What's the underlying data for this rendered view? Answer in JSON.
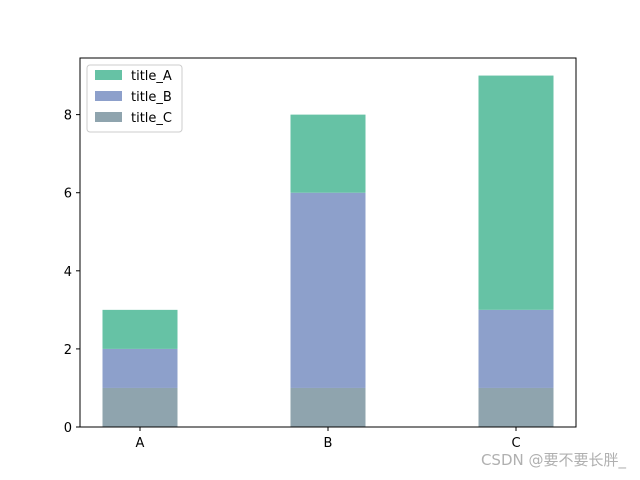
{
  "chart_data": {
    "type": "bar",
    "stacked": true,
    "categories": [
      "A",
      "B",
      "C"
    ],
    "series": [
      {
        "name": "title_C",
        "values": [
          1,
          1,
          1
        ],
        "color": "#8fa4ae"
      },
      {
        "name": "title_B",
        "values": [
          1,
          5,
          2
        ],
        "color": "#8da0cb"
      },
      {
        "name": "title_A",
        "values": [
          1,
          2,
          6
        ],
        "color": "#66c2a5"
      }
    ],
    "legend_order": [
      "title_A",
      "title_B",
      "title_C"
    ],
    "title": "",
    "xlabel": "",
    "ylabel": "",
    "ylim": [
      0,
      9.45
    ],
    "yticks": [
      "0",
      "2",
      "4",
      "6",
      "8"
    ],
    "grid": false,
    "legend_position": "top-left"
  },
  "watermark": "CSDN @要不要长胖_"
}
